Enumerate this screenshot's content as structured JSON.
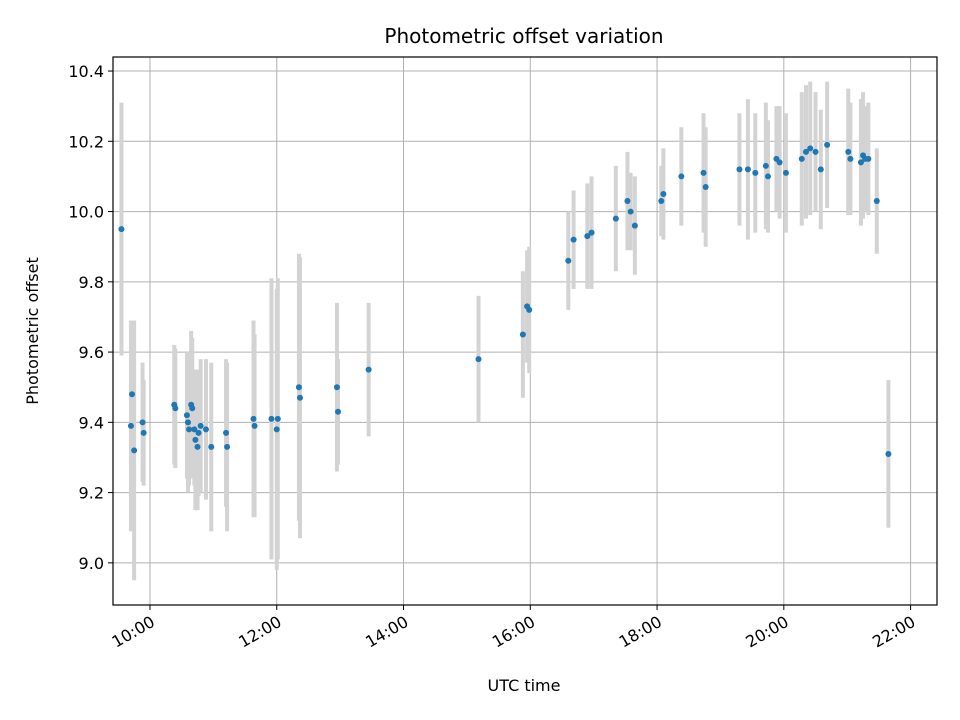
{
  "chart_data": {
    "type": "scatter",
    "title": "Photometric offset variation",
    "xlabel": "UTC time",
    "ylabel": "Photometric offset",
    "x_ticks": [
      "10:00",
      "12:00",
      "14:00",
      "16:00",
      "18:00",
      "20:00",
      "22:00"
    ],
    "y_ticks": [
      "9.0",
      "9.2",
      "9.4",
      "9.6",
      "9.8",
      "10.0",
      "10.2",
      "10.4"
    ],
    "xlim": [
      "09:25",
      "22:25"
    ],
    "ylim": [
      8.88,
      10.44
    ],
    "grid": true,
    "colors": {
      "points": "#1f77b4",
      "errorbars": "#d3d3d3"
    },
    "series": [
      {
        "x": [
          "09:33",
          "09:42",
          "09:43",
          "09:45",
          "09:53",
          "09:54",
          "10:23",
          "10:24",
          "10:35",
          "10:36",
          "10:37",
          "10:39",
          "10:40",
          "10:42",
          "10:43",
          "10:45",
          "10:46",
          "10:48",
          "10:53",
          "10:58",
          "11:12",
          "11:13",
          "11:38",
          "11:39",
          "11:55",
          "12:00",
          "12:01",
          "12:21",
          "12:22",
          "12:57",
          "12:58",
          "13:27",
          "15:11",
          "15:53",
          "15:57",
          "15:59",
          "16:36",
          "16:41",
          "16:54",
          "16:58",
          "17:21",
          "17:32",
          "17:35",
          "17:39",
          "18:04",
          "18:06",
          "18:23",
          "18:44",
          "18:46",
          "19:18",
          "19:26",
          "19:33",
          "19:43",
          "19:45",
          "19:53",
          "19:56",
          "20:02",
          "20:17",
          "20:21",
          "20:25",
          "20:30",
          "20:35",
          "20:41",
          "21:01",
          "21:03",
          "21:13",
          "21:15",
          "21:17",
          "21:20",
          "21:28",
          "21:39"
        ],
        "y": [
          9.95,
          9.39,
          9.48,
          9.32,
          9.4,
          9.37,
          9.45,
          9.44,
          9.42,
          9.4,
          9.38,
          9.45,
          9.44,
          9.38,
          9.35,
          9.33,
          9.37,
          9.39,
          9.38,
          9.33,
          9.37,
          9.33,
          9.41,
          9.39,
          9.41,
          9.38,
          9.41,
          9.5,
          9.47,
          9.5,
          9.43,
          9.55,
          9.58,
          9.65,
          9.73,
          9.72,
          9.86,
          9.92,
          9.93,
          9.94,
          9.98,
          10.03,
          10.0,
          9.96,
          10.03,
          10.05,
          10.1,
          10.11,
          10.07,
          10.12,
          10.12,
          10.11,
          10.13,
          10.1,
          10.15,
          10.14,
          10.11,
          10.15,
          10.17,
          10.18,
          10.17,
          10.12,
          10.19,
          10.17,
          10.15,
          10.14,
          10.16,
          10.15,
          10.15,
          10.03,
          9.31
        ],
        "err": [
          0.36,
          0.3,
          0.21,
          0.37,
          0.17,
          0.15,
          0.17,
          0.17,
          0.18,
          0.2,
          0.16,
          0.21,
          0.2,
          0.16,
          0.2,
          0.18,
          0.18,
          0.19,
          0.2,
          0.24,
          0.21,
          0.24,
          0.28,
          0.26,
          0.4,
          0.4,
          0.4,
          0.38,
          0.4,
          0.24,
          0.15,
          0.19,
          0.18,
          0.18,
          0.16,
          0.18,
          0.14,
          0.14,
          0.15,
          0.16,
          0.15,
          0.14,
          0.11,
          0.14,
          0.1,
          0.13,
          0.14,
          0.17,
          0.17,
          0.16,
          0.2,
          0.17,
          0.18,
          0.16,
          0.15,
          0.16,
          0.17,
          0.19,
          0.19,
          0.19,
          0.17,
          0.17,
          0.18,
          0.18,
          0.16,
          0.18,
          0.18,
          0.15,
          0.16,
          0.15,
          0.21
        ]
      }
    ]
  }
}
